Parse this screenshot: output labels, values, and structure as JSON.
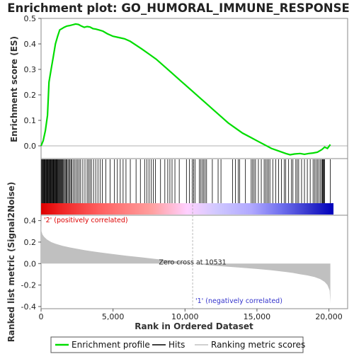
{
  "chart_data": {
    "type": "line",
    "title": "Enrichment plot: GO_HUMORAL_IMMUNE_RESPONSE",
    "es_panel": {
      "ylabel": "Enrichment score (ES)",
      "ylim": [
        -0.05,
        0.5
      ],
      "yticks": [
        "0.0",
        "0.1",
        "0.2",
        "0.3",
        "0.4",
        "0.5"
      ],
      "series": [
        {
          "name": "Enrichment profile",
          "color": "#00dd00",
          "x": [
            0,
            150,
            300,
            450,
            550,
            700,
            850,
            1000,
            1150,
            1300,
            1450,
            1600,
            1800,
            2000,
            2200,
            2400,
            2600,
            2800,
            3000,
            3200,
            3400,
            3600,
            3800,
            4000,
            4300,
            4600,
            5000,
            5400,
            5800,
            6200,
            6600,
            7000,
            7500,
            8000,
            8500,
            9000,
            9500,
            10000,
            10500,
            11000,
            11500,
            12000,
            12500,
            13000,
            13500,
            14000,
            14500,
            15000,
            15500,
            16000,
            16500,
            17000,
            17300,
            17600,
            18000,
            18300,
            18600,
            18900,
            19200,
            19500,
            19700,
            19900,
            20100
          ],
          "y": [
            0.0,
            0.02,
            0.06,
            0.12,
            0.25,
            0.3,
            0.35,
            0.4,
            0.43,
            0.455,
            0.46,
            0.465,
            0.47,
            0.472,
            0.475,
            0.478,
            0.476,
            0.47,
            0.465,
            0.468,
            0.466,
            0.46,
            0.458,
            0.455,
            0.45,
            0.44,
            0.43,
            0.425,
            0.42,
            0.41,
            0.395,
            0.38,
            0.36,
            0.34,
            0.315,
            0.29,
            0.265,
            0.24,
            0.215,
            0.19,
            0.165,
            0.14,
            0.115,
            0.09,
            0.07,
            0.05,
            0.035,
            0.02,
            0.005,
            -0.01,
            -0.02,
            -0.03,
            -0.035,
            -0.032,
            -0.03,
            -0.033,
            -0.03,
            -0.028,
            -0.025,
            -0.015,
            -0.005,
            -0.01,
            0.005
          ]
        }
      ]
    },
    "hits_panel": {
      "legend_label": "Hits",
      "hit_ranks_dense": [
        40,
        80,
        120,
        160,
        200,
        240,
        280,
        320,
        360,
        400,
        440,
        480,
        520,
        560,
        600,
        640,
        680,
        720,
        760,
        800,
        840,
        880,
        920,
        960,
        1000,
        1040,
        1080,
        1120,
        1160,
        1200,
        1250,
        1300,
        1350,
        1400,
        1450,
        1500,
        1560,
        1620,
        1680,
        1740,
        1800,
        1870,
        1940,
        2010,
        2080,
        2150,
        2250,
        2350,
        2450,
        2550,
        2650,
        2750,
        2900,
        3050,
        3200,
        3300,
        3400,
        3500,
        3650,
        3800,
        3950,
        4100,
        4250,
        4500,
        4800,
        5100,
        5300,
        5500,
        5700,
        5900,
        6200,
        6600,
        6900,
        7200,
        7350,
        7500,
        7650,
        7800,
        7950,
        8300,
        8600,
        8800,
        8950,
        9100,
        9300,
        9600,
        10100,
        10300,
        10500,
        10600,
        10700,
        11000,
        11100,
        11200,
        11300,
        11400,
        11500,
        11900,
        12300,
        12500,
        13300,
        13500,
        13700,
        13800,
        14200,
        14600,
        14700,
        14800,
        14900,
        15100,
        15300,
        15500,
        15600,
        15700,
        15800,
        15900,
        16100,
        16300,
        16500,
        16700,
        16900,
        17000,
        17200,
        17400,
        17500,
        17700,
        17800,
        17900,
        18100,
        18300,
        18500,
        18700,
        18900,
        19000,
        19100,
        19200,
        19300,
        19400,
        19500,
        19550,
        19600,
        19650,
        19700,
        20100
      ]
    },
    "metric_panel": {
      "ylabel": "Ranked list metric (Signal2Noise)",
      "xlabel": "Rank in Ordered Dataset",
      "legend_label": "Ranking metric scores",
      "ylim": [
        -0.42,
        0.45
      ],
      "yticks": [
        "-0.4",
        "-0.2",
        "0.0",
        "0.2",
        "0.4"
      ],
      "xlim": [
        0,
        21300
      ],
      "xticks": [
        "0",
        "5,000",
        "10,000",
        "15,000",
        "20,000"
      ],
      "profile": {
        "x": [
          0,
          30,
          100,
          200,
          400,
          700,
          1000,
          1500,
          2000,
          3000,
          4000,
          5000,
          6000,
          7000,
          8000,
          9000,
          10000,
          10531,
          11000,
          12000,
          13000,
          14000,
          15000,
          16000,
          17000,
          17500,
          18000,
          18500,
          19000,
          19400,
          19700,
          19900,
          20050,
          20100
        ],
        "y": [
          0.45,
          0.3,
          0.27,
          0.25,
          0.225,
          0.2,
          0.185,
          0.165,
          0.15,
          0.125,
          0.105,
          0.088,
          0.072,
          0.058,
          0.042,
          0.028,
          0.012,
          0.0,
          -0.008,
          -0.02,
          -0.03,
          -0.04,
          -0.05,
          -0.062,
          -0.078,
          -0.087,
          -0.1,
          -0.11,
          -0.125,
          -0.145,
          -0.17,
          -0.2,
          -0.25,
          -0.37
        ]
      },
      "zero_cross_label": "Zero cross at 10531",
      "zero_cross_rank": 10531,
      "pos_label": "'2' (positively correlated)",
      "neg_label": "'1' (negatively correlated)",
      "pos_color": "#dd0000",
      "neg_color": "#3333cc"
    },
    "legend": {
      "items": [
        {
          "label": "Enrichment profile",
          "color": "#00dd00"
        },
        {
          "label": "Hits",
          "color": "#000000"
        },
        {
          "label": "Ranking metric scores",
          "color": "#c0c0c0"
        }
      ]
    }
  }
}
